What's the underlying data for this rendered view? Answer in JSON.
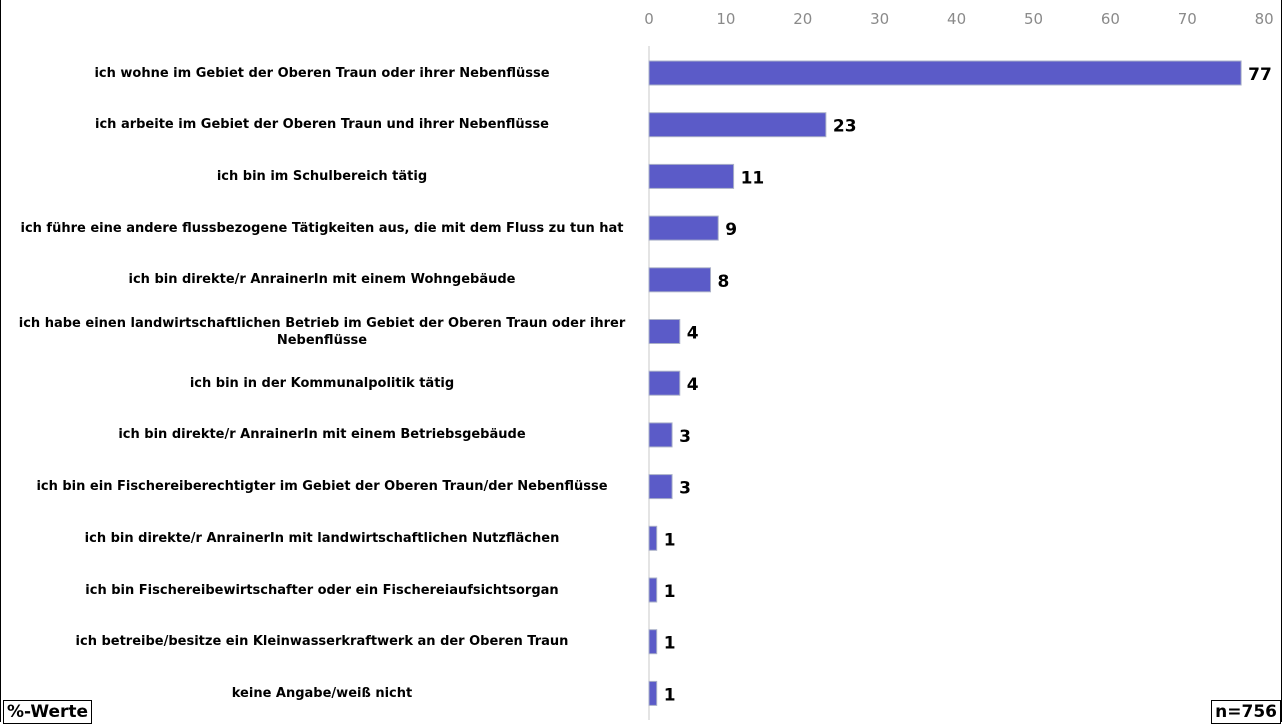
{
  "chart_data": {
    "type": "bar",
    "orientation": "horizontal",
    "categories": [
      "ich wohne im Gebiet der Oberen Traun oder ihrer Nebenflüsse",
      "ich arbeite im Gebiet der Oberen Traun und ihrer Nebenflüsse",
      "ich bin im Schulbereich tätig",
      "ich führe eine andere flussbezogene Tätigkeiten aus, die mit dem Fluss zu tun hat",
      "ich bin direkte/r AnrainerIn mit einem Wohngebäude",
      "ich habe einen landwirtschaftlichen Betrieb im Gebiet der Oberen Traun oder ihrer Nebenflüsse",
      "ich bin in der Kommunalpolitik tätig",
      "ich bin direkte/r AnrainerIn mit einem Betriebsgebäude",
      "ich bin ein Fischereiberechtigter im Gebiet der Oberen Traun/der Nebenflüsse",
      "ich bin direkte/r AnrainerIn mit landwirtschaftlichen Nutzflächen",
      "ich bin Fischereibewirtschafter oder ein Fischereiaufsichtsorgan",
      "ich betreibe/besitze ein Kleinwasserkraftwerk an der Oberen Traun",
      "keine Angabe/weiß nicht"
    ],
    "values": [
      77,
      23,
      11,
      9,
      8,
      4,
      4,
      3,
      3,
      1,
      1,
      1,
      1
    ],
    "value_labels": [
      "77",
      "23",
      "11",
      "9",
      "8",
      "4",
      "4",
      "3",
      "3",
      "1",
      "1",
      "1",
      "1"
    ],
    "xlim": [
      0,
      80
    ],
    "xticks": [
      "0",
      "10",
      "20",
      "30",
      "40",
      "50",
      "60",
      "70",
      "80"
    ],
    "axis_position": "top",
    "bar_color": "#5b5bc8",
    "title": "",
    "xlabel": "",
    "ylabel": ""
  },
  "notes": {
    "unit": "%-Werte",
    "sample_size": "n=756"
  }
}
